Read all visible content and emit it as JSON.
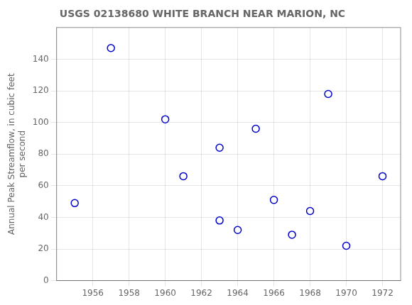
{
  "chart_data": {
    "type": "scatter",
    "title": "USGS 02138680 WHITE BRANCH NEAR MARION, NC",
    "ylabel": "Annual Peak Streamflow, in cubic feet\nper second",
    "x": [
      1955,
      1957,
      1960,
      1961,
      1963,
      1963,
      1964,
      1965,
      1966,
      1967,
      1968,
      1969,
      1970,
      1972
    ],
    "values": [
      49,
      147,
      102,
      66,
      84,
      38,
      32,
      96,
      51,
      29,
      44,
      118,
      22,
      66
    ],
    "xlim": [
      1954,
      1973
    ],
    "ylim": [
      0,
      160
    ],
    "xticks": [
      1956,
      1958,
      1960,
      1962,
      1964,
      1966,
      1968,
      1970,
      1972
    ],
    "yticks": [
      0,
      20,
      40,
      60,
      80,
      100,
      120,
      140
    ],
    "color": "#0000cc",
    "marker": "circle",
    "grid": true
  }
}
